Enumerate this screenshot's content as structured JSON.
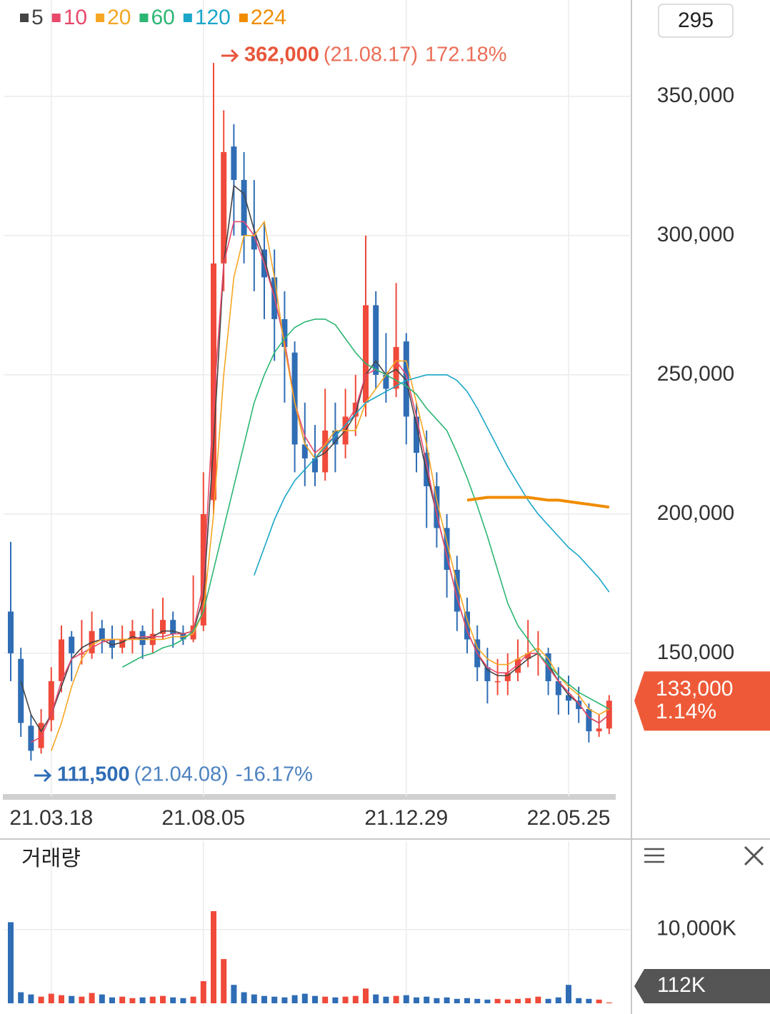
{
  "top_box": "295",
  "chart_data": {
    "type": "candlestick",
    "categories": [
      null,
      null,
      null,
      null,
      "21.03.18",
      null,
      null,
      null,
      null,
      null,
      null,
      null,
      null,
      null,
      null,
      null,
      null,
      null,
      null,
      "21.08.05",
      null,
      null,
      null,
      null,
      null,
      null,
      null,
      null,
      null,
      null,
      null,
      null,
      null,
      null,
      null,
      null,
      null,
      null,
      null,
      "21.12.29",
      null,
      null,
      null,
      null,
      null,
      null,
      null,
      null,
      null,
      null,
      null,
      null,
      null,
      null,
      null,
      "22.05.25",
      null,
      null,
      null,
      null
    ],
    "open": [
      165000,
      148000,
      124000,
      116000,
      126000,
      140000,
      156000,
      150000,
      150000,
      159000,
      155000,
      152000,
      155000,
      158000,
      153000,
      157000,
      162000,
      157000,
      155000,
      160000,
      205000,
      290000,
      332000,
      320000,
      300000,
      295000,
      285000,
      270000,
      258000,
      225000,
      220000,
      215000,
      230000,
      225000,
      235000,
      240000,
      275000,
      250000,
      245000,
      262000,
      235000,
      222000,
      210000,
      195000,
      180000,
      165000,
      155000,
      145000,
      140000,
      140000,
      143000,
      148000,
      150000,
      150000,
      140000,
      135000,
      133000,
      130000,
      122000,
      123000
    ],
    "high": [
      190000,
      152000,
      128000,
      130000,
      145000,
      160000,
      158000,
      162000,
      165000,
      162000,
      160000,
      160000,
      162000,
      160000,
      166000,
      170000,
      165000,
      160000,
      178000,
      215000,
      362000,
      345000,
      340000,
      330000,
      320000,
      305000,
      295000,
      280000,
      262000,
      240000,
      232000,
      245000,
      240000,
      245000,
      250000,
      300000,
      280000,
      265000,
      283000,
      265000,
      240000,
      230000,
      215000,
      200000,
      185000,
      170000,
      160000,
      152000,
      148000,
      150000,
      155000,
      162000,
      158000,
      152000,
      145000,
      142000,
      138000,
      132000,
      128000,
      135000
    ],
    "low": [
      140000,
      120000,
      111500,
      114000,
      122000,
      136000,
      140000,
      146000,
      148000,
      150000,
      148000,
      150000,
      150000,
      148000,
      150000,
      155000,
      152000,
      153000,
      154000,
      158000,
      200000,
      280000,
      300000,
      290000,
      280000,
      270000,
      255000,
      240000,
      215000,
      210000,
      210000,
      212000,
      215000,
      220000,
      228000,
      235000,
      245000,
      240000,
      242000,
      225000,
      215000,
      195000,
      188000,
      170000,
      158000,
      150000,
      140000,
      132000,
      135000,
      135000,
      140000,
      145000,
      142000,
      135000,
      128000,
      128000,
      125000,
      118000,
      120000,
      121000
    ],
    "close": [
      150000,
      125000,
      115000,
      125000,
      140000,
      155000,
      150000,
      150000,
      158000,
      155000,
      152000,
      155000,
      158000,
      153000,
      157000,
      162000,
      157000,
      155000,
      160000,
      200000,
      290000,
      330000,
      320000,
      300000,
      295000,
      285000,
      270000,
      260000,
      225000,
      220000,
      215000,
      230000,
      225000,
      235000,
      240000,
      275000,
      250000,
      245000,
      260000,
      235000,
      222000,
      210000,
      195000,
      180000,
      165000,
      155000,
      145000,
      140000,
      140000,
      143000,
      148000,
      150000,
      150000,
      140000,
      135000,
      133000,
      130000,
      122000,
      123000,
      133000
    ],
    "up_color": "#ef4a3a",
    "down_color": "#2f6db5",
    "series": [
      {
        "name": "5",
        "color": "#444444",
        "values": [
          null,
          140000,
          128000,
          122000,
          128000,
          138000,
          148000,
          152000,
          154000,
          155000,
          153000,
          154000,
          156000,
          155000,
          156000,
          158000,
          158000,
          157000,
          158000,
          170000,
          225000,
          290000,
          318000,
          315000,
          302000,
          292000,
          278000,
          262000,
          240000,
          225000,
          220000,
          222000,
          226000,
          230000,
          236000,
          250000,
          255000,
          250000,
          252000,
          248000,
          232000,
          215000,
          200000,
          185000,
          170000,
          158000,
          150000,
          144000,
          142000,
          142000,
          145000,
          148000,
          150000,
          146000,
          140000,
          135000,
          132000,
          127000,
          125000,
          128000
        ]
      },
      {
        "name": "10",
        "color": "#e8496b",
        "values": [
          null,
          null,
          118000,
          120000,
          128000,
          140000,
          148000,
          150000,
          152000,
          154000,
          155000,
          155000,
          155000,
          156000,
          156000,
          156000,
          157000,
          157000,
          158000,
          175000,
          240000,
          290000,
          305000,
          305000,
          300000,
          290000,
          278000,
          262000,
          240000,
          228000,
          222000,
          225000,
          228000,
          232000,
          238000,
          250000,
          252000,
          250000,
          255000,
          250000,
          235000,
          218000,
          200000,
          185000,
          170000,
          158000,
          150000,
          145000,
          143000,
          143000,
          146000,
          150000,
          150000,
          145000,
          140000,
          136000,
          132000,
          127000,
          125000,
          128000
        ]
      },
      {
        "name": "20",
        "color": "#f5a623",
        "values": [
          null,
          null,
          null,
          null,
          115000,
          125000,
          138000,
          148000,
          153000,
          155000,
          155000,
          155000,
          155000,
          155000,
          155000,
          155000,
          156000,
          156000,
          157000,
          165000,
          200000,
          250000,
          285000,
          300000,
          300000,
          305000,
          285000,
          260000,
          240000,
          225000,
          220000,
          225000,
          230000,
          230000,
          230000,
          240000,
          245000,
          250000,
          255000,
          255000,
          240000,
          225000,
          205000,
          190000,
          175000,
          162000,
          152000,
          148000,
          146000,
          146000,
          148000,
          150000,
          152000,
          148000,
          142000,
          138000,
          135000,
          130000,
          128000,
          130000
        ]
      },
      {
        "name": "60",
        "color": "#2bb673",
        "values": [
          null,
          null,
          null,
          null,
          null,
          null,
          null,
          null,
          null,
          null,
          null,
          145000,
          147000,
          149000,
          150000,
          152000,
          153000,
          155000,
          158000,
          165000,
          180000,
          195000,
          210000,
          225000,
          240000,
          250000,
          258000,
          263000,
          267000,
          269000,
          270000,
          270000,
          268000,
          263000,
          258000,
          254000,
          252000,
          250000,
          248000,
          246000,
          243000,
          238000,
          234000,
          230000,
          222000,
          213000,
          203000,
          192000,
          180000,
          168000,
          160000,
          155000,
          150000,
          146000,
          142000,
          139000,
          136000,
          134000,
          132000,
          130000
        ]
      },
      {
        "name": "120",
        "color": "#1aa6c8",
        "values": [
          null,
          null,
          null,
          null,
          null,
          null,
          null,
          null,
          null,
          null,
          null,
          null,
          null,
          null,
          null,
          null,
          null,
          null,
          null,
          null,
          null,
          null,
          null,
          null,
          178000,
          188000,
          198000,
          206000,
          212000,
          216000,
          220000,
          224000,
          228000,
          232000,
          236000,
          240000,
          242000,
          244000,
          246000,
          248000,
          249000,
          250000,
          250000,
          250000,
          248000,
          244000,
          238000,
          231000,
          224000,
          217000,
          211000,
          205000,
          200000,
          196000,
          192000,
          188000,
          185000,
          181000,
          177000,
          172000
        ]
      },
      {
        "name": "224",
        "color": "#f08c00",
        "values": [
          null,
          null,
          null,
          null,
          null,
          null,
          null,
          null,
          null,
          null,
          null,
          null,
          null,
          null,
          null,
          null,
          null,
          null,
          null,
          null,
          null,
          null,
          null,
          null,
          null,
          null,
          null,
          null,
          null,
          null,
          null,
          null,
          null,
          null,
          null,
          null,
          null,
          null,
          null,
          null,
          null,
          null,
          null,
          null,
          null,
          205000,
          205500,
          206000,
          206000,
          206000,
          206000,
          206000,
          205500,
          205000,
          205000,
          204500,
          204000,
          203500,
          203000,
          202500
        ]
      }
    ],
    "ylim": [
      98700,
      384600
    ],
    "yticks": [
      {
        "value": 150000,
        "label": "150,000"
      },
      {
        "value": 200000,
        "label": "200,000"
      },
      {
        "value": 250000,
        "label": "250,000"
      },
      {
        "value": 300000,
        "label": "300,000"
      },
      {
        "value": 350000,
        "label": "350,000"
      }
    ],
    "grid": true,
    "high_note": {
      "value": 362000,
      "label": "362,000",
      "date": "(21.08.17)",
      "change": "172.18%"
    },
    "low_note": {
      "value": 111500,
      "label": "111,500",
      "date": "(21.04.08)",
      "change": "-16.17%"
    },
    "current": {
      "value": 133000,
      "label": "133,000",
      "change": "1.14%",
      "color": "#ee5a38"
    }
  },
  "volume": {
    "type": "bar",
    "title": "거래량",
    "values": [
      11000,
      1500,
      1200,
      900,
      1300,
      1100,
      1000,
      900,
      1400,
      1200,
      800,
      900,
      700,
      800,
      900,
      1000,
      800,
      700,
      900,
      3000,
      12500,
      6000,
      2500,
      1500,
      1200,
      1000,
      900,
      800,
      1100,
      1300,
      1000,
      900,
      800,
      900,
      1000,
      2000,
      1200,
      900,
      1000,
      1100,
      800,
      900,
      700,
      800,
      600,
      700,
      600,
      500,
      600,
      500,
      600,
      700,
      900,
      600,
      800,
      2500,
      700,
      600,
      500,
      112
    ],
    "ylim": [
      0,
      21800
    ],
    "yticks": [
      {
        "value": 10000,
        "label": "10,000K"
      }
    ],
    "current": {
      "value": 112,
      "label": "112K",
      "color": "#555555"
    }
  }
}
